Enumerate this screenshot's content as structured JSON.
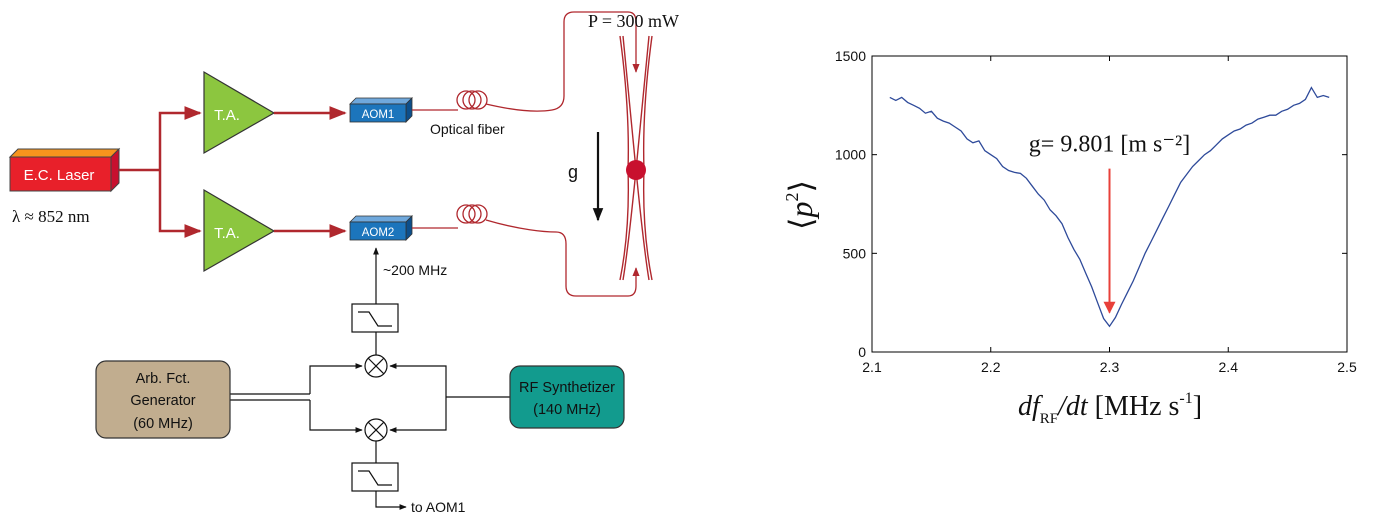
{
  "diagram": {
    "laser": {
      "label": "E.C. Laser",
      "wavelength": "λ ≈ 852 nm"
    },
    "amplifiers": [
      {
        "label": "T.A."
      },
      {
        "label": "T.A."
      }
    ],
    "aoms": [
      {
        "label": "AOM1"
      },
      {
        "label": "AOM2"
      }
    ],
    "fiber_label": "Optical fiber",
    "power_label": "P = 300 mW",
    "gravity_label": "g",
    "rf_label": "~200 MHz",
    "arb_generator": {
      "line1": "Arb. Fct.",
      "line2": "Generator",
      "line3": "(60 MHz)"
    },
    "rf_synthesizer": {
      "line1": "RF Synthetizer",
      "line2": "(140 MHz)"
    },
    "to_aom1_label": "to AOM1",
    "colors": {
      "beam": "#b0282e",
      "amplifier": "#8cc63f",
      "aom": "#1c75bc",
      "laser_body": "#e8202a",
      "laser_top": "#f7941d",
      "arb_box": "#c1ad8f",
      "rf_box": "#129b8e",
      "atom": "#c8102e"
    }
  },
  "chart_data": {
    "type": "line",
    "xlabel": "df_RF/dt [MHz s⁻¹]",
    "ylabel": "⟨p²⟩",
    "xlim": [
      2.1,
      2.5
    ],
    "ylim": [
      0,
      1500
    ],
    "xticks": [
      "2.1",
      "2.2",
      "2.3",
      "2.4",
      "2.5"
    ],
    "yticks": [
      "0",
      "500",
      "1000",
      "1500"
    ],
    "grid": false,
    "line_color": "#2e4a9a",
    "annotation": {
      "text": "g= 9.801 [m s⁻²]",
      "x": 2.3,
      "y_from": 1000,
      "y_to": 200,
      "color": "#e8403a"
    },
    "series": [
      {
        "x": [
          2.115,
          2.12,
          2.125,
          2.13,
          2.135,
          2.14,
          2.145,
          2.15,
          2.155,
          2.16,
          2.165,
          2.17,
          2.175,
          2.18,
          2.185,
          2.19,
          2.195,
          2.2,
          2.205,
          2.21,
          2.215,
          2.22,
          2.225,
          2.23,
          2.235,
          2.24,
          2.245,
          2.25,
          2.255,
          2.26,
          2.265,
          2.27,
          2.275,
          2.28,
          2.285,
          2.29,
          2.295,
          2.3,
          2.305,
          2.31,
          2.315,
          2.32,
          2.325,
          2.33,
          2.335,
          2.34,
          2.345,
          2.35,
          2.355,
          2.36,
          2.365,
          2.37,
          2.375,
          2.38,
          2.385,
          2.39,
          2.395,
          2.4,
          2.405,
          2.41,
          2.415,
          2.42,
          2.425,
          2.43,
          2.435,
          2.44,
          2.445,
          2.45,
          2.455,
          2.46,
          2.465,
          2.47,
          2.475,
          2.48,
          2.485
        ],
        "y": [
          1290,
          1275,
          1290,
          1265,
          1250,
          1235,
          1210,
          1220,
          1185,
          1170,
          1160,
          1140,
          1120,
          1080,
          1060,
          1070,
          1020,
          1000,
          980,
          940,
          920,
          910,
          905,
          880,
          840,
          800,
          770,
          720,
          690,
          650,
          580,
          520,
          470,
          400,
          330,
          250,
          170,
          130,
          175,
          240,
          300,
          360,
          430,
          500,
          560,
          620,
          680,
          740,
          800,
          860,
          900,
          940,
          970,
          1000,
          1020,
          1050,
          1080,
          1100,
          1120,
          1130,
          1150,
          1160,
          1180,
          1190,
          1200,
          1200,
          1220,
          1230,
          1250,
          1260,
          1280,
          1340,
          1290,
          1300,
          1290
        ]
      }
    ]
  }
}
